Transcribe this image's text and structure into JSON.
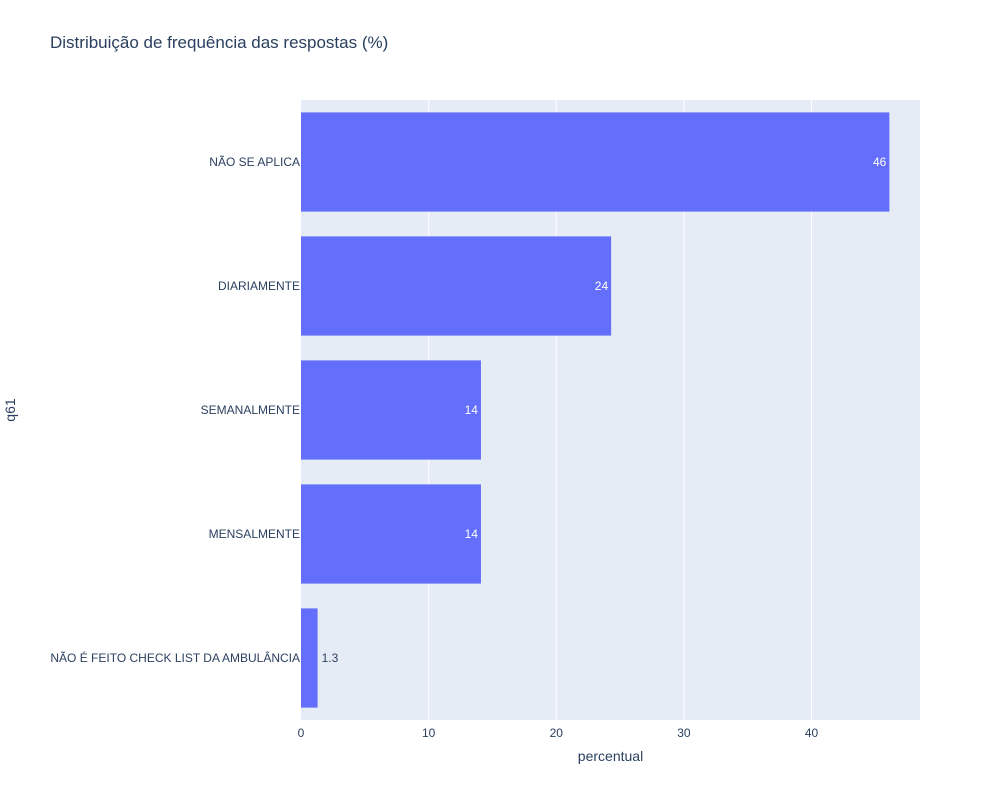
{
  "chart_data": {
    "type": "bar",
    "orientation": "horizontal",
    "title": "Distribuição de frequência das respostas (%)",
    "xlabel": "percentual",
    "ylabel": "q61",
    "categories": [
      "NÃO SE APLICA",
      "DIARIAMENTE",
      "SEMANALMENTE",
      "MENSALMENTE",
      "NÃO É FEITO CHECK LIST DA AMBULÂNCIA"
    ],
    "values": [
      46.1,
      24.3,
      14.1,
      14.1,
      1.3
    ],
    "value_labels": [
      "46",
      "24",
      "14",
      "14",
      "1.3"
    ],
    "xlim": [
      0,
      48.5
    ],
    "x_ticks": [
      0,
      10,
      20,
      30,
      40
    ],
    "grid": true,
    "colors": {
      "bar": "#636efa",
      "plot_background": "#e5ecf6",
      "grid": "#ffffff",
      "text": "#2a3f5f",
      "inside_label": "#ffffff"
    }
  }
}
